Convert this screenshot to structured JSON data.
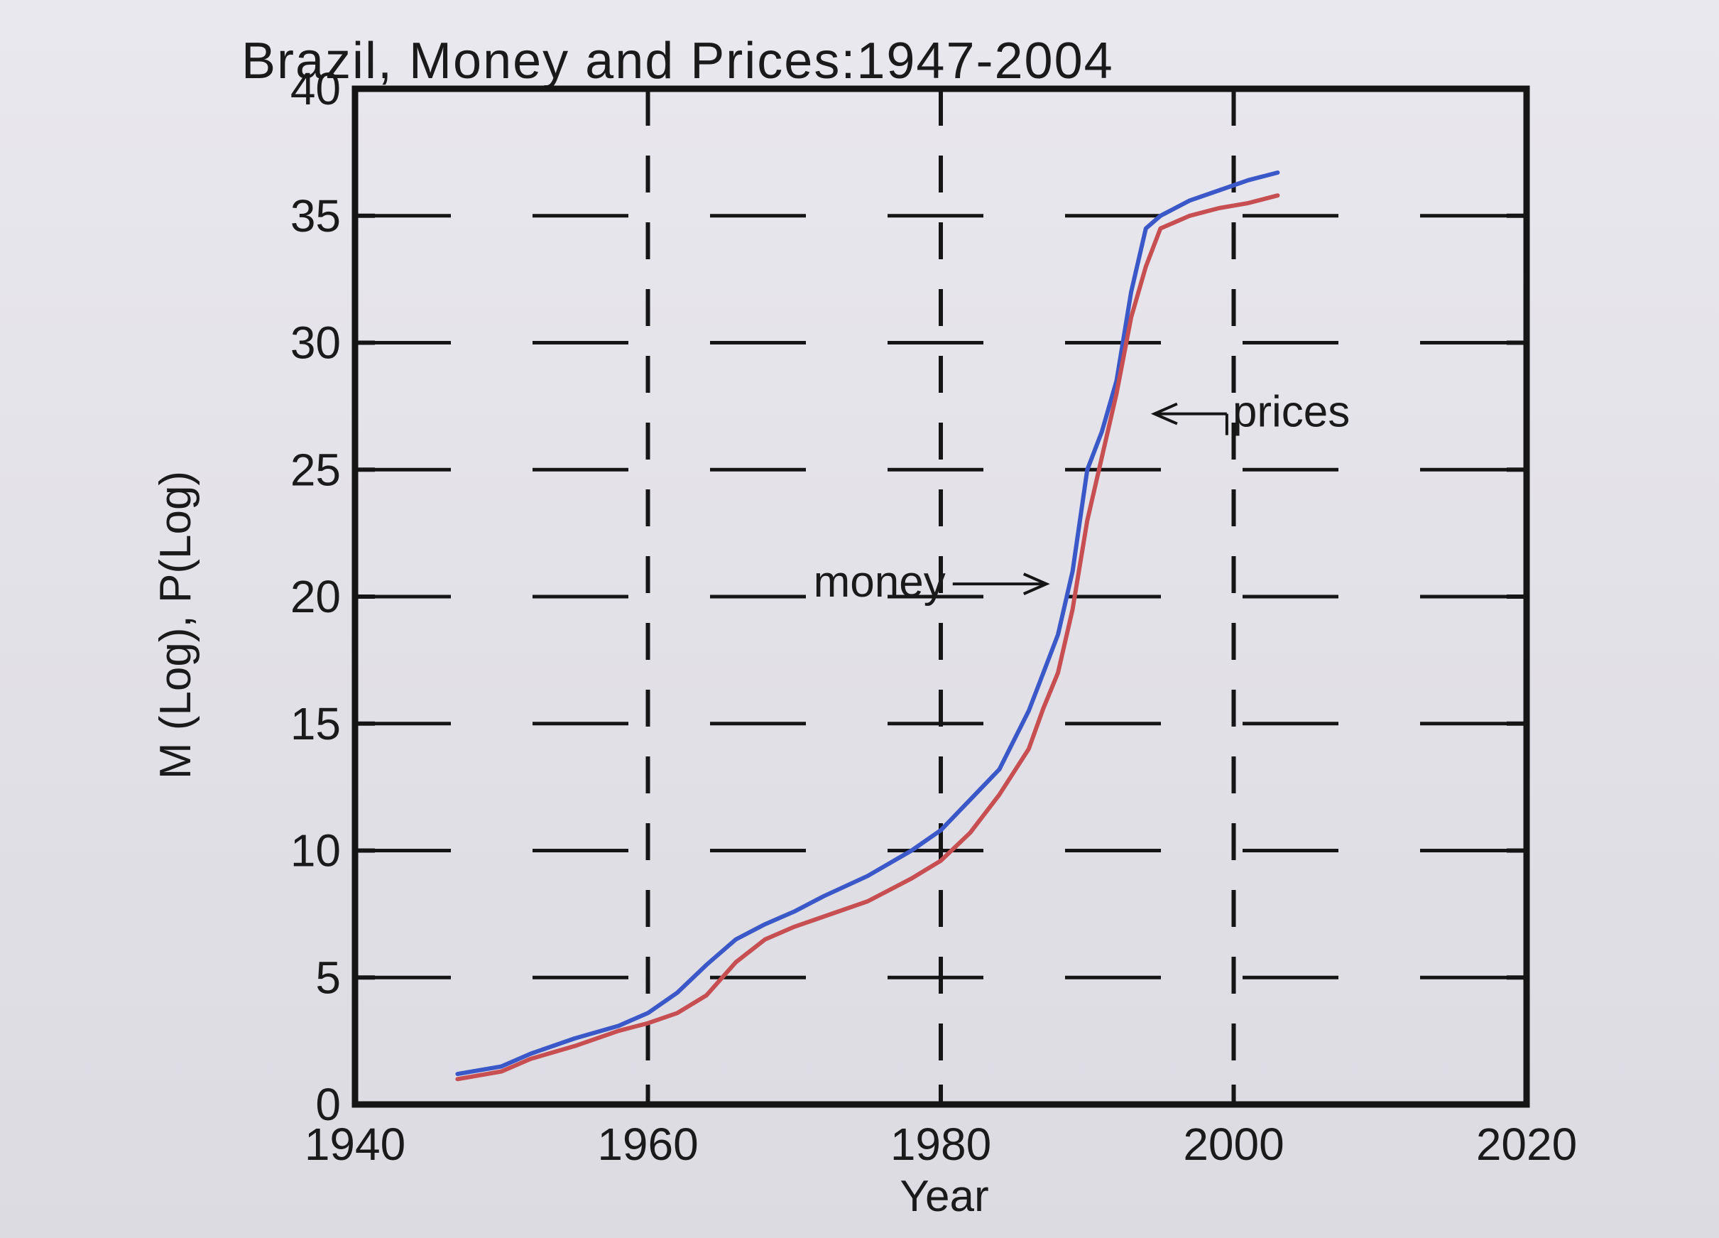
{
  "chart_data": {
    "type": "line",
    "title": "Brazil, Money and Prices:1947-2004",
    "xlabel": "Year",
    "ylabel": "M (Log), P(Log)",
    "xlim": [
      1940,
      2020
    ],
    "ylim": [
      0,
      40
    ],
    "x_ticks": [
      "1940",
      "1960",
      "1980",
      "2000",
      "2020"
    ],
    "y_ticks": [
      "0",
      "5",
      "10",
      "15",
      "20",
      "25",
      "30",
      "35",
      "40"
    ],
    "grid": "dashed",
    "series": [
      {
        "name": "money",
        "color": "#3b58c8",
        "x": [
          1947,
          1950,
          1952,
          1955,
          1958,
          1960,
          1962,
          1964,
          1966,
          1968,
          1970,
          1972,
          1975,
          1978,
          1980,
          1982,
          1984,
          1986,
          1987,
          1988,
          1989,
          1990,
          1991,
          1992,
          1993,
          1994,
          1995,
          1997,
          1999,
          2001,
          2003
        ],
        "y": [
          1.2,
          1.5,
          2.0,
          2.6,
          3.1,
          3.6,
          4.4,
          5.5,
          6.5,
          7.1,
          7.6,
          8.2,
          9.0,
          10.0,
          10.8,
          12.0,
          13.2,
          15.5,
          17.0,
          18.5,
          21.0,
          25.0,
          26.5,
          28.5,
          32.0,
          34.5,
          35.0,
          35.6,
          36.0,
          36.4,
          36.7
        ]
      },
      {
        "name": "prices",
        "color": "#c74f52",
        "x": [
          1947,
          1950,
          1952,
          1955,
          1958,
          1960,
          1962,
          1964,
          1966,
          1968,
          1970,
          1972,
          1975,
          1978,
          1980,
          1982,
          1984,
          1986,
          1987,
          1988,
          1989,
          1990,
          1991,
          1992,
          1993,
          1994,
          1995,
          1997,
          1999,
          2001,
          2003
        ],
        "y": [
          1.0,
          1.3,
          1.8,
          2.3,
          2.9,
          3.2,
          3.6,
          4.3,
          5.6,
          6.5,
          7.0,
          7.4,
          8.0,
          8.9,
          9.6,
          10.7,
          12.2,
          14.0,
          15.6,
          17.0,
          19.5,
          23.0,
          25.5,
          28.0,
          31.0,
          33.0,
          34.5,
          35.0,
          35.3,
          35.5,
          35.8
        ]
      }
    ],
    "annotations": [
      {
        "text": "money",
        "arrow": "right"
      },
      {
        "text": "prices",
        "arrow": "left"
      }
    ]
  }
}
